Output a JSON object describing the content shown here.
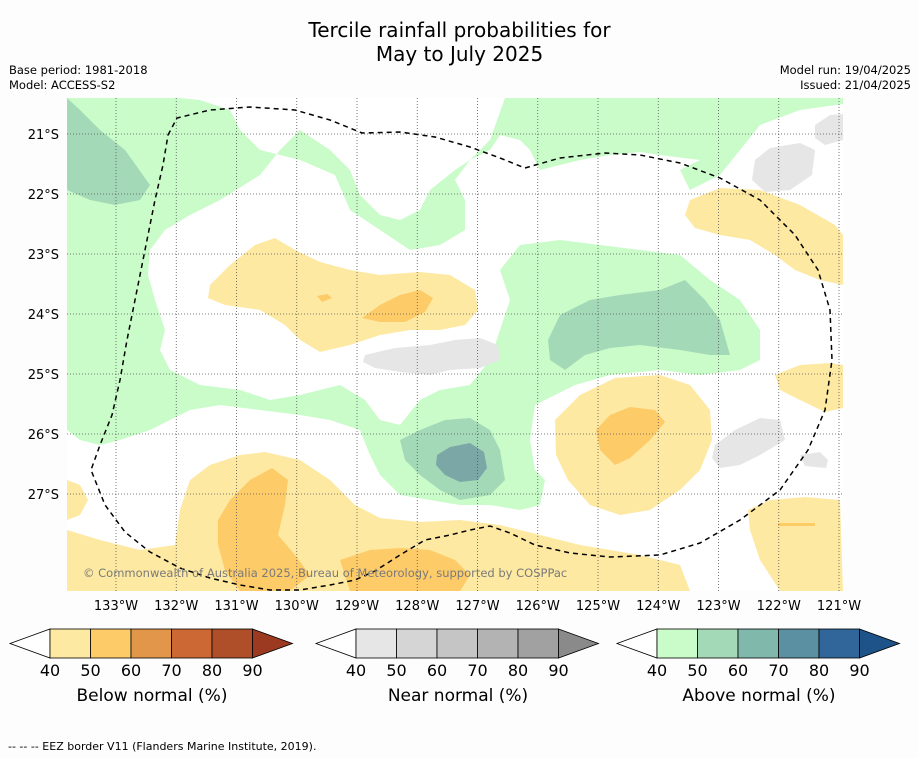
{
  "title_line1": "Tercile rainfall probabilities for",
  "title_line2": "May to July 2025",
  "base_period": "Base period: 1981-2018",
  "model": "Model: ACCESS-S2",
  "model_run": "Model run: 19/04/2025",
  "issued": "Issued: 21/04/2025",
  "copyright": "© Commonwealth of Australia 2025, Bureau of Meteorology, supported by COSPPac",
  "footer": "--  --  -- EEZ border V11 (Flanders Marine Institute, 2019).",
  "map": {
    "lat_labels": [
      "21°S",
      "22°S",
      "23°S",
      "24°S",
      "25°S",
      "26°S",
      "27°S"
    ],
    "lon_labels": [
      "133°W",
      "132°W",
      "131°W",
      "130°W",
      "129°W",
      "128°W",
      "127°W",
      "126°W",
      "125°W",
      "124°W",
      "123°W",
      "122°W",
      "121°W"
    ],
    "grid": true
  },
  "colorbars": [
    {
      "title": "Below normal (%)",
      "ticks": [
        "40",
        "50",
        "60",
        "70",
        "80",
        "90"
      ],
      "colors": [
        "#fde9a1",
        "#fdcb68",
        "#e19649",
        "#cc6834",
        "#ae4f29",
        "#9b3a20"
      ]
    },
    {
      "title": "Near normal (%)",
      "ticks": [
        "40",
        "50",
        "60",
        "70",
        "80",
        "90"
      ],
      "colors": [
        "#e6e6e6",
        "#d5d5d5",
        "#c5c5c5",
        "#b3b3b3",
        "#a1a1a1",
        "#8a8a8a"
      ]
    },
    {
      "title": "Above normal (%)",
      "ticks": [
        "40",
        "50",
        "60",
        "70",
        "80",
        "90"
      ],
      "colors": [
        "#c9fcc9",
        "#a4d9b8",
        "#80b8ac",
        "#5a90a1",
        "#30669a",
        "#1e538a"
      ]
    }
  ],
  "colors": {
    "below_40": "#fde9a1",
    "below_50": "#fdcb68",
    "near_40": "#e6e6e6",
    "above_40": "#c9fcc9",
    "above_50": "#a4d9b8",
    "above_60": "#7ba7a6",
    "eez_border": "#000000"
  }
}
